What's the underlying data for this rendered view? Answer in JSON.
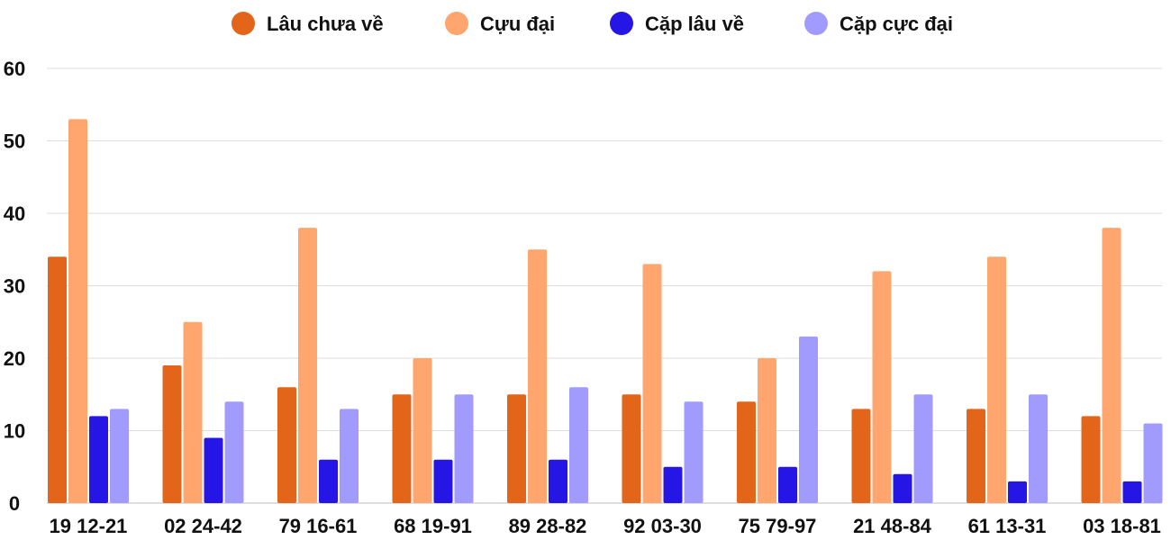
{
  "chart_data": {
    "type": "bar",
    "title": "",
    "xlabel": "",
    "ylabel": "",
    "ylim": [
      0,
      60
    ],
    "yticks": [
      0,
      10,
      20,
      30,
      40,
      50,
      60
    ],
    "grid": true,
    "legend_position": "top",
    "categories": [
      "19 12-21",
      "02 24-42",
      "79 16-61",
      "68 19-91",
      "89 28-82",
      "92 03-30",
      "75 79-97",
      "21 48-84",
      "61 13-31",
      "03 18-81"
    ],
    "series": [
      {
        "name": "Lâu chưa về",
        "color": "#E2651A",
        "values": [
          34,
          19,
          16,
          15,
          15,
          15,
          14,
          13,
          13,
          12
        ]
      },
      {
        "name": "Cựu đại",
        "color": "#FFA56E",
        "values": [
          53,
          25,
          38,
          20,
          35,
          33,
          20,
          32,
          34,
          38
        ]
      },
      {
        "name": "Cặp lâu về",
        "color": "#2516E6",
        "values": [
          12,
          9,
          6,
          6,
          6,
          5,
          5,
          4,
          3,
          3
        ]
      },
      {
        "name": "Cặp cực đại",
        "color": "#A29BFE",
        "values": [
          13,
          14,
          13,
          15,
          16,
          14,
          23,
          15,
          15,
          11
        ]
      }
    ]
  }
}
